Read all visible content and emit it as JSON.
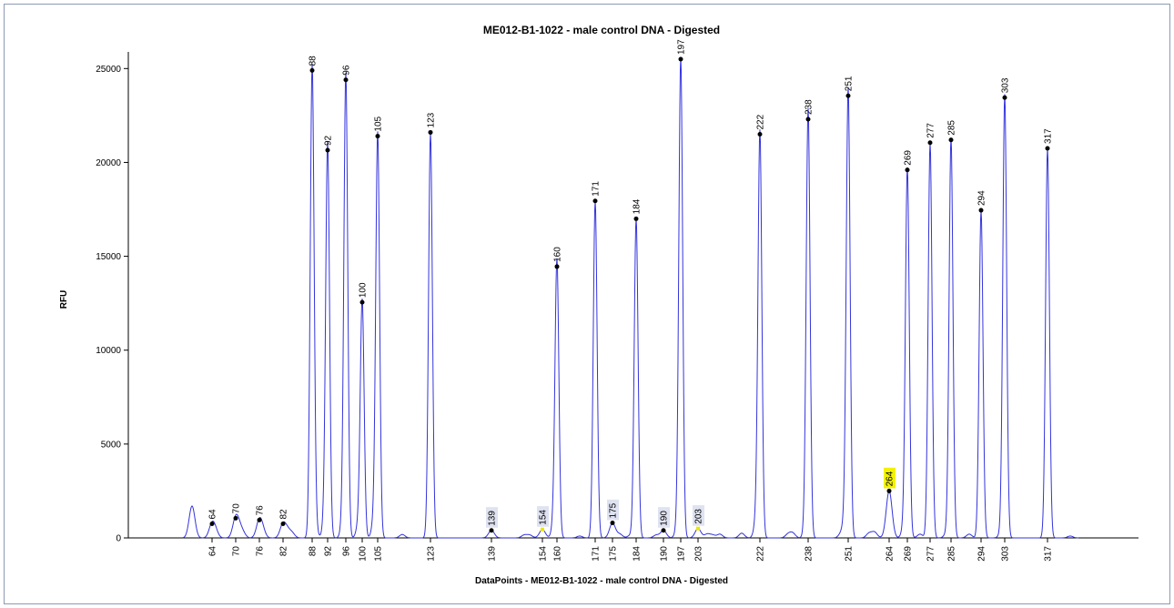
{
  "chart_data": {
    "type": "line",
    "title": "ME012-B1-1022 - male control DNA - Digested",
    "xlabel": "DataPoints - ME012-B1-1022 - male control DNA - Digested",
    "ylabel": "RFU",
    "ylim": [
      0,
      25500
    ],
    "yticks": [
      0,
      5000,
      10000,
      15000,
      20000,
      25000
    ],
    "grid": false,
    "line_color": "#3333dd",
    "peaks": [
      {
        "label": "64",
        "height": 750,
        "highlight": "none",
        "dot": true
      },
      {
        "label": "70",
        "height": 1050,
        "highlight": "none",
        "dot": true
      },
      {
        "label": "76",
        "height": 950,
        "highlight": "none",
        "dot": true
      },
      {
        "label": "82",
        "height": 750,
        "highlight": "none",
        "dot": true
      },
      {
        "label": "88",
        "height": 24900,
        "highlight": "none",
        "dot": true
      },
      {
        "label": "92",
        "height": 20650,
        "highlight": "none",
        "dot": true
      },
      {
        "label": "96",
        "height": 24400,
        "highlight": "none",
        "dot": true
      },
      {
        "label": "100",
        "height": 12550,
        "highlight": "none",
        "dot": true
      },
      {
        "label": "105",
        "height": 21400,
        "highlight": "none",
        "dot": true
      },
      {
        "label": "123",
        "height": 21600,
        "highlight": "none",
        "dot": true
      },
      {
        "label": "139",
        "height": 400,
        "highlight": "grey",
        "dot": true
      },
      {
        "label": "154",
        "height": 450,
        "highlight": "grey",
        "dot": false
      },
      {
        "label": "160",
        "height": 14450,
        "highlight": "none",
        "dot": true
      },
      {
        "label": "171",
        "height": 17950,
        "highlight": "none",
        "dot": true
      },
      {
        "label": "175",
        "height": 800,
        "highlight": "grey",
        "dot": true
      },
      {
        "label": "184",
        "height": 17000,
        "highlight": "none",
        "dot": true
      },
      {
        "label": "190",
        "height": 400,
        "highlight": "grey",
        "dot": true
      },
      {
        "label": "197",
        "height": 25500,
        "highlight": "none",
        "dot": true
      },
      {
        "label": "203",
        "height": 500,
        "highlight": "grey",
        "dot": false
      },
      {
        "label": "222",
        "height": 21500,
        "highlight": "none",
        "dot": true
      },
      {
        "label": "238",
        "height": 22300,
        "highlight": "none",
        "dot": true
      },
      {
        "label": "251",
        "height": 23550,
        "highlight": "none",
        "dot": true
      },
      {
        "label": "264",
        "height": 2500,
        "highlight": "yellow",
        "dot": true
      },
      {
        "label": "269",
        "height": 19600,
        "highlight": "none",
        "dot": true
      },
      {
        "label": "277",
        "height": 21050,
        "highlight": "none",
        "dot": true
      },
      {
        "label": "285",
        "height": 21200,
        "highlight": "none",
        "dot": true
      },
      {
        "label": "294",
        "height": 17450,
        "highlight": "none",
        "dot": true
      },
      {
        "label": "303",
        "height": 23450,
        "highlight": "none",
        "dot": true
      },
      {
        "label": "317",
        "height": 20750,
        "highlight": "none",
        "dot": true
      }
    ],
    "x_tick_labels": [
      "64",
      "70",
      "76",
      "82",
      "88",
      "92",
      "96",
      "100",
      "105",
      "123",
      "139",
      "154",
      "160",
      "171",
      "175",
      "184",
      "190",
      "197",
      "203",
      "222",
      "238",
      "251",
      "264",
      "269",
      "277",
      "285",
      "294",
      "303",
      "317"
    ]
  }
}
